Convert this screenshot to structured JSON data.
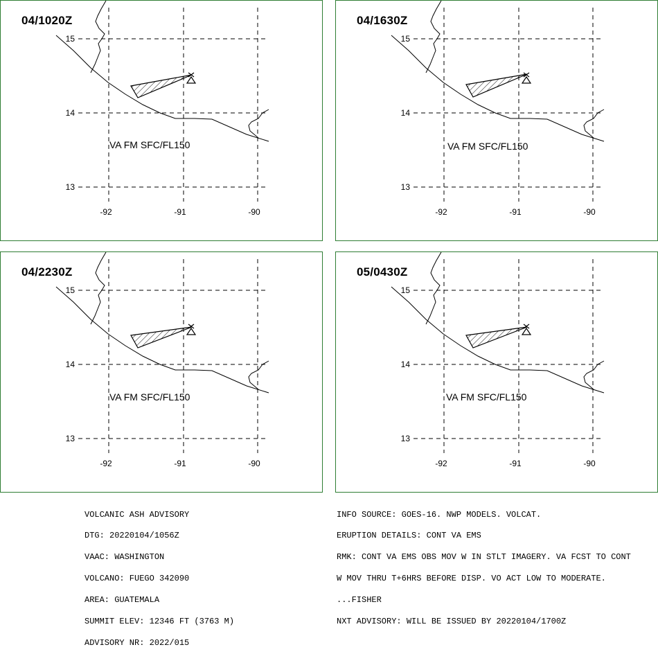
{
  "panels": [
    {
      "time": "04/1020Z",
      "ash_label": "VA FM SFC/FL150"
    },
    {
      "time": "04/1630Z",
      "ash_label": "VA FM SFC/FL150"
    },
    {
      "time": "04/2230Z",
      "ash_label": "VA FM SFC/FL150"
    },
    {
      "time": "05/0430Z",
      "ash_label": "VA FM SFC/FL150"
    }
  ],
  "grid": {
    "lat_labels": [
      "15",
      "14",
      "13"
    ],
    "lon_labels": [
      "-92",
      "-91",
      "-90"
    ]
  },
  "colors": {
    "panel_border": "#2e7d32",
    "lines": "#000000"
  },
  "advisory_left": [
    "VOLCANIC ASH ADVISORY",
    "DTG: 20220104/1056Z",
    "VAAC: WASHINGTON",
    "VOLCANO: FUEGO 342090",
    "AREA: GUATEMALA",
    "SUMMIT ELEV: 12346 FT (3763 M)",
    "ADVISORY NR: 2022/015"
  ],
  "advisory_right": [
    "INFO SOURCE: GOES-16. NWP MODELS. VOLCAT.",
    "ERUPTION DETAILS: CONT VA EMS",
    "RMK: CONT VA EMS OBS MOV W IN STLT IMAGERY. VA FCST TO CONT",
    "W MOV THRU T+6HRS BEFORE DISP. VO ACT LOW TO MODERATE.",
    "...FISHER",
    "NXT ADVISORY: WILL BE ISSUED BY 20220104/1700Z"
  ]
}
